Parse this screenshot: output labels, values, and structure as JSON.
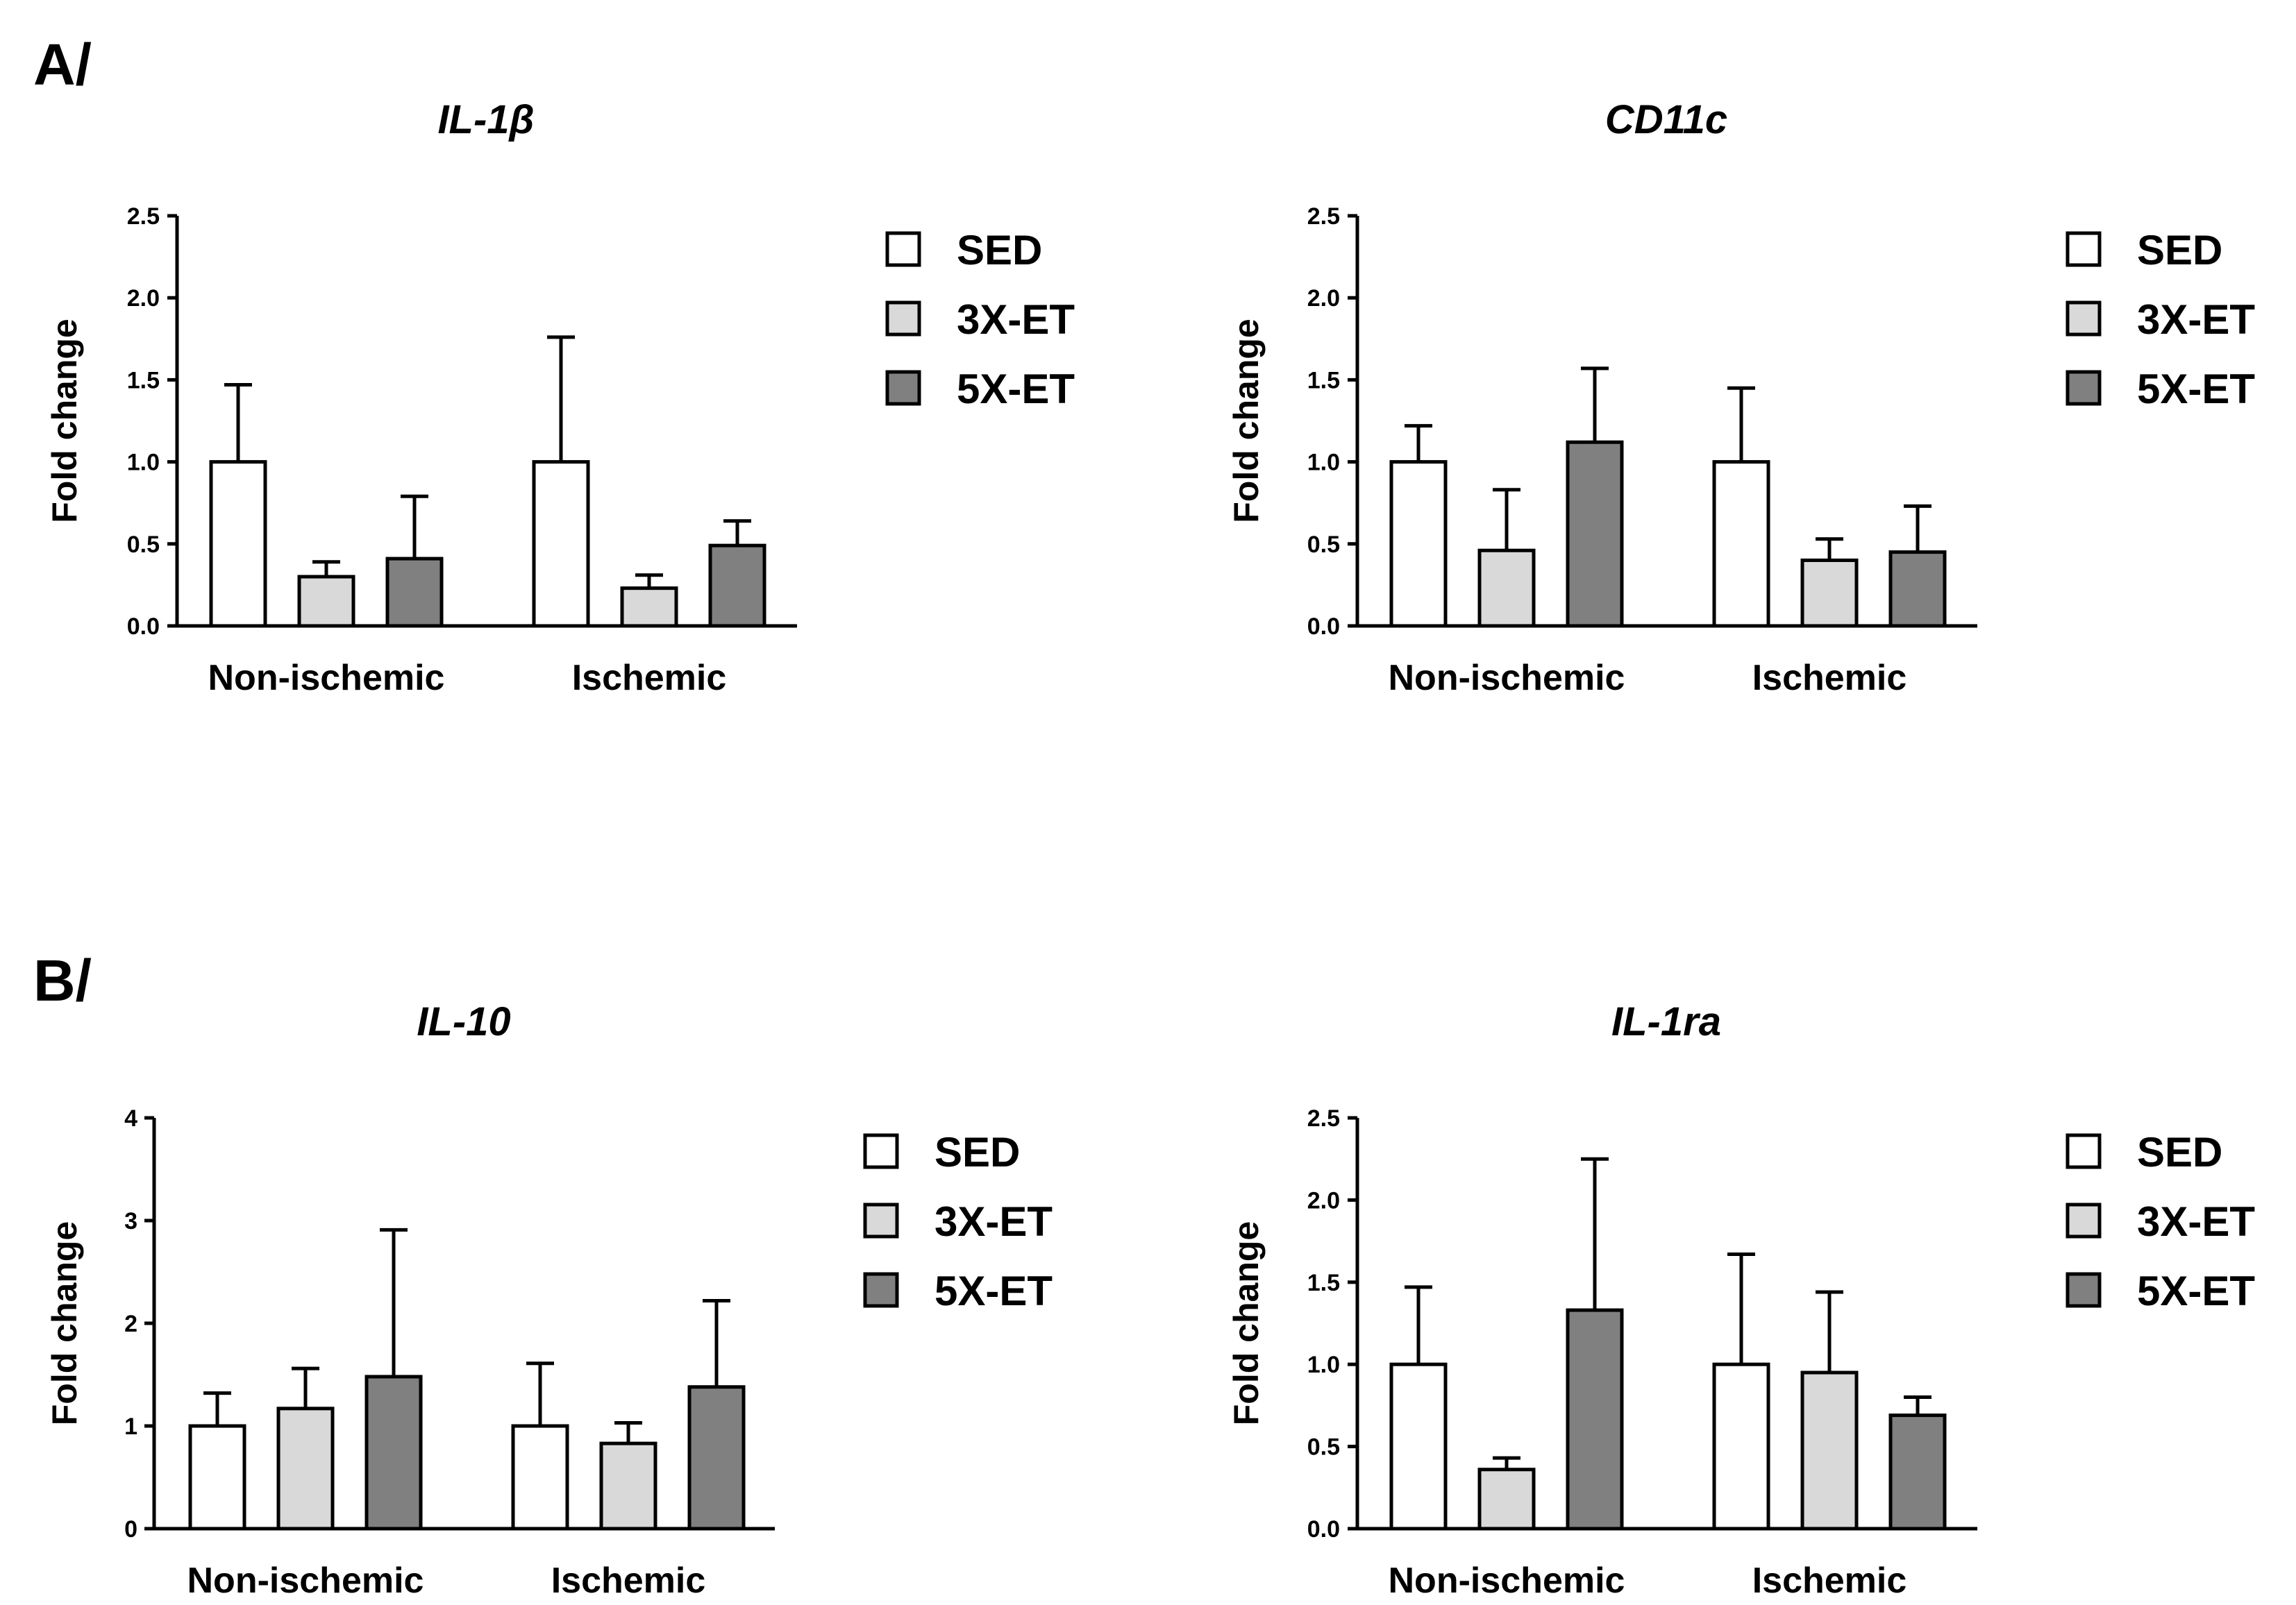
{
  "panels": [
    {
      "label": "A/"
    },
    {
      "label": "B/"
    }
  ],
  "colors": {
    "SED": "#ffffff",
    "3X-ET": "#d9d9d9",
    "5X-ET": "#808080",
    "stroke": "#000000"
  },
  "chart_data": [
    {
      "type": "bar",
      "title": "IL-1β",
      "ylabel": "Fold change",
      "xlabel": "",
      "categories": [
        "Non-ischemic",
        "Ischemic"
      ],
      "ylim": [
        0,
        2.5
      ],
      "yticks": [
        "0.0",
        "0.5",
        "1.0",
        "1.5",
        "2.0",
        "2.5"
      ],
      "series": [
        {
          "name": "SED",
          "values": [
            1.0,
            1.0
          ],
          "errors": [
            0.47,
            0.76
          ]
        },
        {
          "name": "3X-ET",
          "values": [
            0.3,
            0.23
          ],
          "errors": [
            0.09,
            0.08
          ]
        },
        {
          "name": "5X-ET",
          "values": [
            0.41,
            0.49
          ],
          "errors": [
            0.38,
            0.15
          ]
        }
      ]
    },
    {
      "type": "bar",
      "title": "CD11c",
      "ylabel": "Fold change",
      "xlabel": "",
      "categories": [
        "Non-ischemic",
        "Ischemic"
      ],
      "ylim": [
        0,
        2.5
      ],
      "yticks": [
        "0.0",
        "0.5",
        "1.0",
        "1.5",
        "2.0",
        "2.5"
      ],
      "series": [
        {
          "name": "SED",
          "values": [
            1.0,
            1.0
          ],
          "errors": [
            0.22,
            0.45
          ]
        },
        {
          "name": "3X-ET",
          "values": [
            0.46,
            0.4
          ],
          "errors": [
            0.37,
            0.13
          ]
        },
        {
          "name": "5X-ET",
          "values": [
            1.12,
            0.45
          ],
          "errors": [
            0.45,
            0.28
          ]
        }
      ]
    },
    {
      "type": "bar",
      "title": "IL-10",
      "ylabel": "Fold change",
      "xlabel": "",
      "categories": [
        "Non-ischemic",
        "Ischemic"
      ],
      "ylim": [
        0,
        4
      ],
      "yticks": [
        "0",
        "1",
        "2",
        "3",
        "4"
      ],
      "series": [
        {
          "name": "SED",
          "values": [
            1.0,
            1.0
          ],
          "errors": [
            0.32,
            0.61
          ]
        },
        {
          "name": "3X-ET",
          "values": [
            1.17,
            0.83
          ],
          "errors": [
            0.39,
            0.2
          ]
        },
        {
          "name": "5X-ET",
          "values": [
            1.48,
            1.38
          ],
          "errors": [
            1.43,
            0.84
          ]
        }
      ]
    },
    {
      "type": "bar",
      "title": "IL-1ra",
      "ylabel": "Fold change",
      "xlabel": "",
      "categories": [
        "Non-ischemic",
        "Ischemic"
      ],
      "ylim": [
        0,
        2.5
      ],
      "yticks": [
        "0.0",
        "0.5",
        "1.0",
        "1.5",
        "2.0",
        "2.5"
      ],
      "series": [
        {
          "name": "SED",
          "values": [
            1.0,
            1.0
          ],
          "errors": [
            0.47,
            0.67
          ]
        },
        {
          "name": "3X-ET",
          "values": [
            0.36,
            0.95
          ],
          "errors": [
            0.07,
            0.49
          ]
        },
        {
          "name": "5X-ET",
          "values": [
            1.33,
            0.69
          ],
          "errors": [
            0.92,
            0.11
          ]
        }
      ]
    }
  ]
}
